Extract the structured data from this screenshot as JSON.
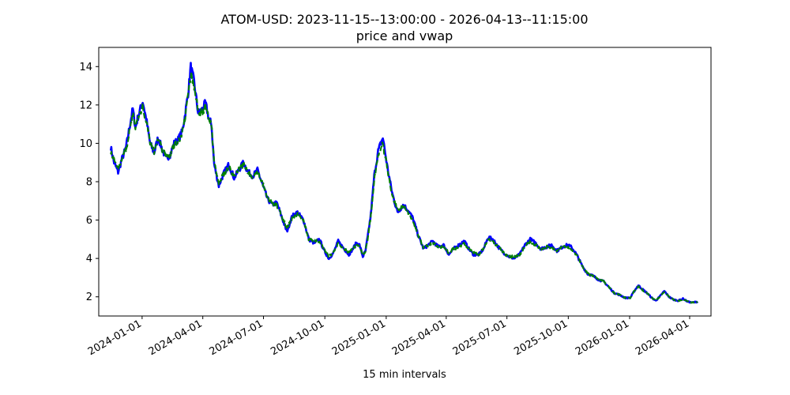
{
  "chart_data": {
    "type": "line",
    "title": "ATOM-USD: 2023-11-15--13:00:00 - 2026-04-13--11:15:00",
    "subtitle": "price and vwap",
    "xlabel": "15 min intervals",
    "ylabel": "",
    "x_ticks": [
      "2024-01-01",
      "2024-04-01",
      "2024-07-01",
      "2024-10-01",
      "2025-01-01",
      "2025-04-01",
      "2025-07-01",
      "2025-10-01",
      "2026-01-01",
      "2026-04-01"
    ],
    "y_ticks": [
      2,
      4,
      6,
      8,
      10,
      12,
      14
    ],
    "xlim": [
      "2023-10-28",
      "2026-05-03"
    ],
    "ylim": [
      1.0,
      15.0
    ],
    "grid": false,
    "legend": "none",
    "series": [
      {
        "color": "#0000ff",
        "x": [
          "2023-11-15",
          "2023-11-20",
          "2023-11-26",
          "2023-12-02",
          "2023-12-08",
          "2023-12-13",
          "2023-12-18",
          "2023-12-22",
          "2023-12-26",
          "2024-01-02",
          "2024-01-08",
          "2024-01-13",
          "2024-01-19",
          "2024-01-25",
          "2024-01-31",
          "2024-02-06",
          "2024-02-12",
          "2024-02-18",
          "2024-02-24",
          "2024-03-01",
          "2024-03-05",
          "2024-03-10",
          "2024-03-14",
          "2024-03-19",
          "2024-03-25",
          "2024-03-30",
          "2024-04-05",
          "2024-04-10",
          "2024-04-14",
          "2024-04-18",
          "2024-04-25",
          "2024-05-02",
          "2024-05-10",
          "2024-05-18",
          "2024-05-25",
          "2024-06-01",
          "2024-06-08",
          "2024-06-15",
          "2024-06-22",
          "2024-06-30",
          "2024-07-07",
          "2024-07-14",
          "2024-07-21",
          "2024-07-28",
          "2024-08-05",
          "2024-08-13",
          "2024-08-21",
          "2024-08-30",
          "2024-09-07",
          "2024-09-15",
          "2024-09-23",
          "2024-09-30",
          "2024-10-07",
          "2024-10-14",
          "2024-10-21",
          "2024-10-30",
          "2024-11-06",
          "2024-11-12",
          "2024-11-17",
          "2024-11-22",
          "2024-11-27",
          "2024-12-01",
          "2024-12-05",
          "2024-12-09",
          "2024-12-14",
          "2024-12-20",
          "2024-12-27",
          "2025-01-03",
          "2025-01-10",
          "2025-01-18",
          "2025-01-27",
          "2025-02-03",
          "2025-02-10",
          "2025-02-18",
          "2025-02-26",
          "2025-03-05",
          "2025-03-12",
          "2025-03-20",
          "2025-03-28",
          "2025-04-05",
          "2025-04-12",
          "2025-04-20",
          "2025-04-28",
          "2025-05-05",
          "2025-05-12",
          "2025-05-20",
          "2025-05-27",
          "2025-06-03",
          "2025-06-10",
          "2025-06-18",
          "2025-06-26",
          "2025-07-04",
          "2025-07-12",
          "2025-07-20",
          "2025-07-28",
          "2025-08-05",
          "2025-08-13",
          "2025-08-21",
          "2025-08-29",
          "2025-09-06",
          "2025-09-14",
          "2025-09-22",
          "2025-09-30",
          "2025-10-05",
          "2025-10-10",
          "2025-10-15",
          "2025-10-22",
          "2025-10-30",
          "2025-11-07",
          "2025-11-15",
          "2025-11-23",
          "2025-12-01",
          "2025-12-09",
          "2025-12-17",
          "2025-12-25",
          "2026-01-02",
          "2026-01-08",
          "2026-01-14",
          "2026-01-20",
          "2026-01-27",
          "2026-02-03",
          "2026-02-09",
          "2026-02-15",
          "2026-02-22",
          "2026-03-01",
          "2026-03-08",
          "2026-03-15",
          "2026-03-22",
          "2026-03-29",
          "2026-04-05",
          "2026-04-13"
        ],
        "values": [
          9.8,
          9.0,
          8.5,
          9.2,
          9.8,
          10.8,
          11.8,
          10.8,
          11.4,
          12.2,
          11.1,
          10.0,
          9.5,
          10.3,
          9.7,
          9.2,
          9.4,
          10.0,
          10.2,
          10.6,
          11.4,
          12.6,
          14.0,
          13.2,
          11.6,
          11.7,
          12.1,
          11.3,
          11.0,
          8.9,
          7.8,
          8.4,
          8.9,
          8.2,
          8.6,
          9.0,
          8.5,
          8.3,
          8.6,
          7.8,
          7.1,
          6.8,
          6.9,
          6.2,
          5.4,
          6.2,
          6.4,
          6.0,
          5.0,
          4.8,
          5.0,
          4.4,
          4.0,
          4.3,
          4.9,
          4.5,
          4.2,
          4.5,
          4.8,
          4.7,
          4.1,
          4.4,
          5.3,
          6.3,
          8.3,
          9.6,
          10.3,
          8.7,
          7.4,
          6.4,
          6.8,
          6.5,
          6.1,
          5.2,
          4.5,
          4.7,
          4.9,
          4.6,
          4.7,
          4.2,
          4.5,
          4.7,
          4.9,
          4.5,
          4.2,
          4.2,
          4.5,
          5.1,
          5.0,
          4.6,
          4.3,
          4.1,
          4.0,
          4.2,
          4.7,
          5.0,
          4.8,
          4.5,
          4.6,
          4.7,
          4.4,
          4.6,
          4.7,
          4.6,
          4.4,
          4.1,
          3.6,
          3.2,
          3.1,
          2.9,
          2.8,
          2.5,
          2.2,
          2.1,
          1.95,
          1.95,
          2.3,
          2.6,
          2.4,
          2.2,
          1.95,
          1.8,
          2.0,
          2.3,
          2.0,
          1.85,
          1.8,
          1.9,
          1.75,
          1.7,
          1.75
        ]
      },
      {
        "color": "#008000",
        "x": [
          "2023-11-15",
          "2023-11-20",
          "2023-11-26",
          "2023-12-02",
          "2023-12-08",
          "2023-12-13",
          "2023-12-18",
          "2023-12-22",
          "2023-12-26",
          "2024-01-02",
          "2024-01-08",
          "2024-01-13",
          "2024-01-19",
          "2024-01-25",
          "2024-01-31",
          "2024-02-06",
          "2024-02-12",
          "2024-02-18",
          "2024-02-24",
          "2024-03-01",
          "2024-03-05",
          "2024-03-10",
          "2024-03-14",
          "2024-03-19",
          "2024-03-25",
          "2024-03-30",
          "2024-04-05",
          "2024-04-10",
          "2024-04-14",
          "2024-04-18",
          "2024-04-25",
          "2024-05-02",
          "2024-05-10",
          "2024-05-18",
          "2024-05-25",
          "2024-06-01",
          "2024-06-08",
          "2024-06-15",
          "2024-06-22",
          "2024-06-30",
          "2024-07-07",
          "2024-07-14",
          "2024-07-21",
          "2024-07-28",
          "2024-08-05",
          "2024-08-13",
          "2024-08-21",
          "2024-08-30",
          "2024-09-07",
          "2024-09-15",
          "2024-09-23",
          "2024-09-30",
          "2024-10-07",
          "2024-10-14",
          "2024-10-21",
          "2024-10-30",
          "2024-11-06",
          "2024-11-12",
          "2024-11-17",
          "2024-11-22",
          "2024-11-27",
          "2024-12-01",
          "2024-12-05",
          "2024-12-09",
          "2024-12-14",
          "2024-12-20",
          "2024-12-27",
          "2025-01-03",
          "2025-01-10",
          "2025-01-18",
          "2025-01-27",
          "2025-02-03",
          "2025-02-10",
          "2025-02-18",
          "2025-02-26",
          "2025-03-05",
          "2025-03-12",
          "2025-03-20",
          "2025-03-28",
          "2025-04-05",
          "2025-04-12",
          "2025-04-20",
          "2025-04-28",
          "2025-05-05",
          "2025-05-12",
          "2025-05-20",
          "2025-05-27",
          "2025-06-03",
          "2025-06-10",
          "2025-06-18",
          "2025-06-26",
          "2025-07-04",
          "2025-07-12",
          "2025-07-20",
          "2025-07-28",
          "2025-08-05",
          "2025-08-13",
          "2025-08-21",
          "2025-08-29",
          "2025-09-06",
          "2025-09-14",
          "2025-09-22",
          "2025-09-30",
          "2025-10-05",
          "2025-10-10",
          "2025-10-15",
          "2025-10-22",
          "2025-10-30",
          "2025-11-07",
          "2025-11-15",
          "2025-11-23",
          "2025-12-01",
          "2025-12-09",
          "2025-12-17",
          "2025-12-25",
          "2026-01-02",
          "2026-01-08",
          "2026-01-14",
          "2026-01-20",
          "2026-01-27",
          "2026-02-03",
          "2026-02-09",
          "2026-02-15",
          "2026-02-22",
          "2026-03-01",
          "2026-03-08",
          "2026-03-15",
          "2026-03-22",
          "2026-03-29",
          "2026-04-05",
          "2026-04-13"
        ],
        "values": [
          9.6,
          9.1,
          8.7,
          9.2,
          9.7,
          10.6,
          11.5,
          10.9,
          11.3,
          11.9,
          11.0,
          10.1,
          9.6,
          10.2,
          9.7,
          9.3,
          9.4,
          9.9,
          10.1,
          10.5,
          11.3,
          12.4,
          13.6,
          13.0,
          11.7,
          11.6,
          11.9,
          11.3,
          11.0,
          9.1,
          8.0,
          8.4,
          8.8,
          8.3,
          8.6,
          8.9,
          8.5,
          8.3,
          8.5,
          7.9,
          7.1,
          6.9,
          6.8,
          6.2,
          5.6,
          6.1,
          6.3,
          6.0,
          5.0,
          4.9,
          4.9,
          4.5,
          4.1,
          4.3,
          4.8,
          4.5,
          4.3,
          4.5,
          4.7,
          4.6,
          4.2,
          4.4,
          5.2,
          6.2,
          8.1,
          9.3,
          10.0,
          8.6,
          7.3,
          6.5,
          6.7,
          6.4,
          6.0,
          5.2,
          4.6,
          4.7,
          4.8,
          4.6,
          4.6,
          4.3,
          4.5,
          4.6,
          4.8,
          4.5,
          4.3,
          4.2,
          4.5,
          5.0,
          4.9,
          4.6,
          4.3,
          4.1,
          4.1,
          4.2,
          4.6,
          4.9,
          4.7,
          4.5,
          4.6,
          4.6,
          4.4,
          4.6,
          4.6,
          4.5,
          4.3,
          4.1,
          3.6,
          3.2,
          3.1,
          2.9,
          2.8,
          2.5,
          2.2,
          2.1,
          1.95,
          1.95,
          2.3,
          2.55,
          2.35,
          2.2,
          1.95,
          1.8,
          2.0,
          2.25,
          2.0,
          1.85,
          1.8,
          1.85,
          1.75,
          1.7,
          1.75
        ]
      }
    ]
  }
}
